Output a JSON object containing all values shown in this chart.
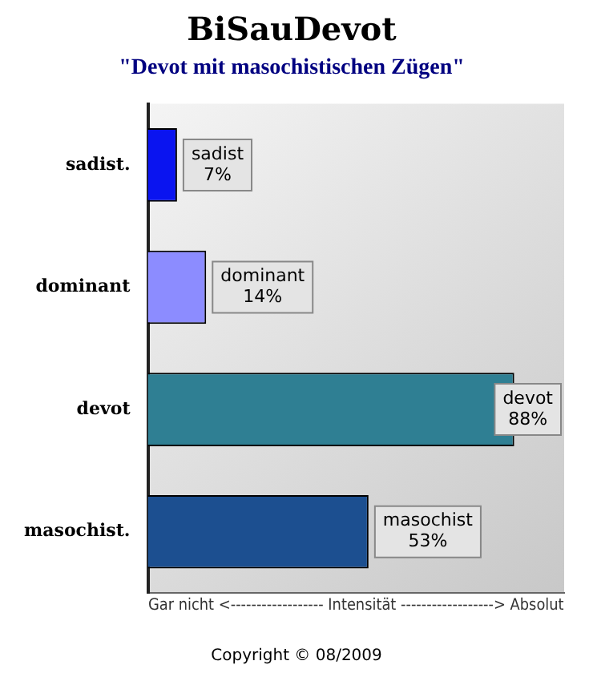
{
  "chart_data": {
    "type": "bar",
    "orientation": "horizontal",
    "title": "BiSauDevot",
    "subtitle": "\"Devot mit masochistischen Zügen\"",
    "xlabel": "Gar nicht <------------------ Intensität ------------------> Absolut",
    "categories": [
      "sadist.",
      "dominant",
      "devot",
      "masochist."
    ],
    "values": [
      7,
      14,
      88,
      53
    ],
    "colors": [
      "#0a14f0",
      "#8c8cff",
      "#2f7f93",
      "#1c4f90"
    ],
    "value_labels": [
      "7%",
      "14%",
      "88%",
      "53%"
    ],
    "xlim": [
      0,
      100
    ],
    "tick_labels": "y",
    "grid": false,
    "legend": false,
    "annotations": [
      {
        "text": "sadist",
        "x": 7,
        "y": "sadist."
      },
      {
        "text": "dominant",
        "x": 14,
        "y": "dominant"
      },
      {
        "text": "devot",
        "x": 88,
        "y": "devot"
      },
      {
        "text": "masochist",
        "x": 53,
        "y": "masochist."
      },
      "Copyright © 08/2009"
    ]
  }
}
